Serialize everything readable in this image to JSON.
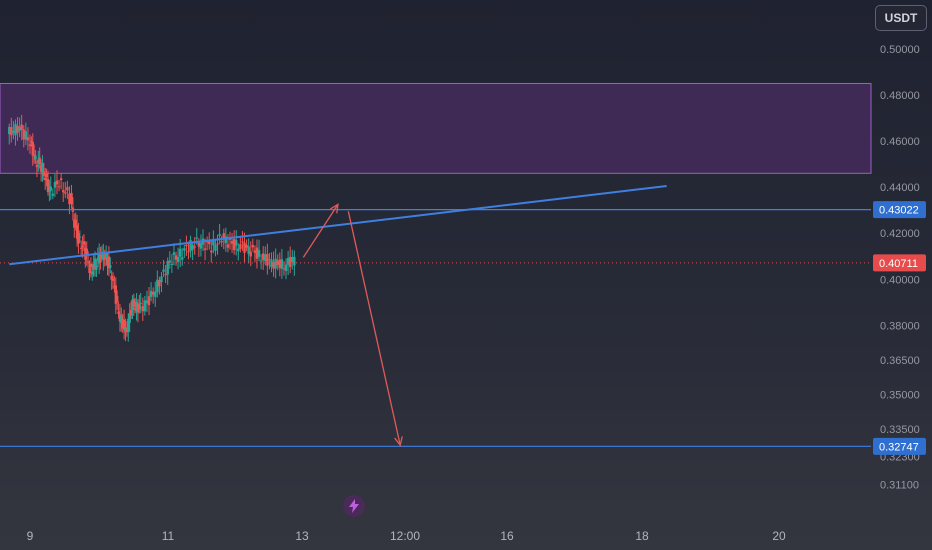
{
  "currency_button": "USDT",
  "colors": {
    "zone_fill": "#3f2a55",
    "zone_border": "#9c5ec4",
    "trendline": "#3f7fe0",
    "level_line": "#3f7fe0",
    "arrow": "#e05a5a",
    "candle_up": "#26a69a",
    "candle_down": "#ef5350",
    "current_price": "#e84b4b"
  },
  "chart_data": {
    "type": "candlestick",
    "pair_quote": "USDT",
    "y_ticks": [
      "0.50000",
      "0.48000",
      "0.46000",
      "0.44000",
      "0.42000",
      "0.40000",
      "0.38000",
      "0.36500",
      "0.35000",
      "0.33500",
      "0.32300",
      "0.31100"
    ],
    "x_ticks": [
      "9",
      "11",
      "13",
      "12:00",
      "16",
      "18",
      "20"
    ],
    "ylim": [
      0.305,
      0.512
    ],
    "price_labels": {
      "upper_level": "0.43022",
      "current_price": "0.40711",
      "lower_level": "0.32747"
    },
    "resistance_zone": [
      0.446,
      0.485
    ],
    "horizontal_levels": [
      0.43022,
      0.32747
    ],
    "current_price": 0.40711,
    "trendline": {
      "from_day": 8.7,
      "from_price": 0.4065,
      "to_day": 18.2,
      "to_price": 0.4405
    },
    "projection_arrows": [
      {
        "from_day": 12.95,
        "from_price": 0.4095,
        "to_day": 13.45,
        "to_price": 0.4325
      },
      {
        "from_day": 13.6,
        "from_price": 0.4295,
        "to_day": 14.35,
        "to_price": 0.328
      }
    ],
    "candles_series": [
      {
        "day": 8.7,
        "price": 0.463
      },
      {
        "day": 8.85,
        "price": 0.466
      },
      {
        "day": 9.0,
        "price": 0.461
      },
      {
        "day": 9.1,
        "price": 0.452
      },
      {
        "day": 9.2,
        "price": 0.448
      },
      {
        "day": 9.3,
        "price": 0.438
      },
      {
        "day": 9.45,
        "price": 0.442
      },
      {
        "day": 9.6,
        "price": 0.435
      },
      {
        "day": 9.7,
        "price": 0.418
      },
      {
        "day": 9.8,
        "price": 0.413
      },
      {
        "day": 9.9,
        "price": 0.403
      },
      {
        "day": 10.0,
        "price": 0.409
      },
      {
        "day": 10.1,
        "price": 0.411
      },
      {
        "day": 10.2,
        "price": 0.402
      },
      {
        "day": 10.3,
        "price": 0.385
      },
      {
        "day": 10.4,
        "price": 0.377
      },
      {
        "day": 10.5,
        "price": 0.389
      },
      {
        "day": 10.6,
        "price": 0.387
      },
      {
        "day": 10.75,
        "price": 0.391
      },
      {
        "day": 10.9,
        "price": 0.399
      },
      {
        "day": 11.05,
        "price": 0.408
      },
      {
        "day": 11.2,
        "price": 0.411
      },
      {
        "day": 11.35,
        "price": 0.415
      },
      {
        "day": 11.5,
        "price": 0.416
      },
      {
        "day": 11.65,
        "price": 0.414
      },
      {
        "day": 11.8,
        "price": 0.418
      },
      {
        "day": 11.95,
        "price": 0.415
      },
      {
        "day": 12.1,
        "price": 0.414
      },
      {
        "day": 12.25,
        "price": 0.412
      },
      {
        "day": 12.4,
        "price": 0.409
      },
      {
        "day": 12.55,
        "price": 0.407
      },
      {
        "day": 12.7,
        "price": 0.406
      },
      {
        "day": 12.85,
        "price": 0.409
      }
    ]
  }
}
